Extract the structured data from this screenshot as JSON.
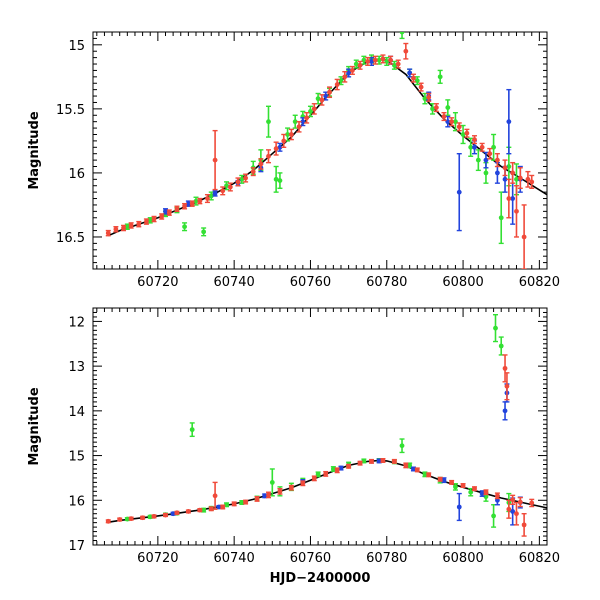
{
  "chart_data": [
    {
      "type": "scatter",
      "title": "",
      "xlabel": "",
      "ylabel": "Magnitude",
      "xlim": [
        60703,
        60822
      ],
      "ylim": [
        16.75,
        14.9
      ],
      "y_inverted": true,
      "xticks": [
        60720,
        60740,
        60760,
        60780,
        60800,
        60820
      ],
      "yticks": [
        15,
        15.5,
        16,
        16.5
      ],
      "ytick_labels": [
        "15",
        "15.5",
        "16",
        "16.5"
      ],
      "model_curve": {
        "color": "#000000",
        "x": [
          60707,
          60710,
          60715,
          60720,
          60725,
          60730,
          60735,
          60740,
          60745,
          60750,
          60755,
          60760,
          60765,
          60770,
          60775,
          60778,
          60780,
          60785,
          60790,
          60795,
          60800,
          60805,
          60810,
          60815,
          60822
        ],
        "y": [
          16.49,
          16.45,
          16.4,
          16.35,
          16.29,
          16.23,
          16.16,
          16.08,
          15.98,
          15.85,
          15.72,
          15.55,
          15.38,
          15.22,
          15.13,
          15.11,
          15.12,
          15.23,
          15.42,
          15.58,
          15.71,
          15.83,
          15.95,
          16.04,
          16.17
        ]
      },
      "series": [
        {
          "color": "#33e033",
          "x": [
            60712,
            60718,
            60722,
            60725,
            60727,
            60730,
            60732,
            60734,
            60738,
            60742,
            60745,
            60747,
            60749,
            60751,
            60752,
            60754,
            60756,
            60758,
            60760,
            60762,
            60765,
            60768,
            60770,
            60772,
            60774,
            60776,
            60778,
            60780,
            60782,
            60784,
            60786,
            60788,
            60790,
            60792,
            60794,
            60796,
            60798,
            60800,
            60802,
            60804,
            60806,
            60808,
            60810,
            60812,
            60814
          ],
          "y": [
            16.42,
            16.37,
            16.32,
            16.29,
            16.42,
            16.22,
            16.46,
            16.18,
            16.1,
            16.05,
            15.96,
            15.9,
            15.6,
            16.05,
            16.06,
            15.7,
            15.6,
            15.56,
            15.52,
            15.42,
            15.37,
            15.28,
            15.2,
            15.15,
            15.12,
            15.11,
            15.12,
            15.13,
            15.16,
            14.9,
            15.22,
            15.28,
            15.42,
            15.5,
            15.25,
            15.49,
            15.6,
            15.7,
            15.8,
            15.9,
            16.0,
            15.8,
            16.35,
            15.95,
            16.05
          ],
          "err": [
            0.02,
            0.02,
            0.02,
            0.02,
            0.03,
            0.03,
            0.03,
            0.03,
            0.03,
            0.03,
            0.05,
            0.08,
            0.12,
            0.1,
            0.06,
            0.05,
            0.05,
            0.04,
            0.04,
            0.04,
            0.03,
            0.03,
            0.03,
            0.03,
            0.03,
            0.03,
            0.03,
            0.03,
            0.03,
            0.05,
            0.03,
            0.03,
            0.04,
            0.04,
            0.05,
            0.06,
            0.07,
            0.07,
            0.07,
            0.08,
            0.08,
            0.1,
            0.2,
            0.15,
            0.12
          ]
        },
        {
          "color": "#2244dd",
          "x": [
            60722,
            60728,
            60735,
            60741,
            60747,
            60752,
            60758,
            60764,
            60770,
            60776,
            60781,
            60786,
            60791,
            60796,
            60799,
            60803,
            60806,
            60809,
            60811,
            60812,
            60813,
            60815
          ],
          "y": [
            16.3,
            16.24,
            16.16,
            16.08,
            15.96,
            15.8,
            15.6,
            15.4,
            15.22,
            15.13,
            15.12,
            15.22,
            15.4,
            15.6,
            16.15,
            15.8,
            15.9,
            16.0,
            16.05,
            15.6,
            16.2,
            16.05
          ],
          "err": [
            0.02,
            0.02,
            0.02,
            0.02,
            0.03,
            0.03,
            0.03,
            0.03,
            0.03,
            0.03,
            0.03,
            0.03,
            0.03,
            0.04,
            0.3,
            0.05,
            0.06,
            0.08,
            0.1,
            0.25,
            0.2,
            0.1
          ]
        },
        {
          "color": "#f04a3a",
          "x": [
            60707,
            60709,
            60711,
            60713,
            60715,
            60717,
            60719,
            60721,
            60723,
            60725,
            60727,
            60729,
            60731,
            60733,
            60735,
            60737,
            60739,
            60741,
            60743,
            60745,
            60747,
            60749,
            60751,
            60753,
            60755,
            60757,
            60759,
            60761,
            60763,
            60765,
            60767,
            60769,
            60771,
            60773,
            60775,
            60777,
            60779,
            60781,
            60783,
            60785,
            60787,
            60789,
            60791,
            60793,
            60795,
            60797,
            60799,
            60801,
            60803,
            60805,
            60807,
            60809,
            60811,
            60812,
            60813,
            60814,
            60815,
            60816,
            60817,
            60818
          ],
          "y": [
            16.47,
            16.44,
            16.43,
            16.41,
            16.4,
            16.38,
            16.36,
            16.34,
            16.31,
            16.28,
            16.26,
            16.24,
            16.22,
            16.2,
            15.9,
            16.14,
            16.11,
            16.07,
            16.04,
            15.99,
            15.93,
            15.87,
            15.81,
            15.75,
            15.7,
            15.64,
            15.57,
            15.5,
            15.43,
            15.37,
            15.31,
            15.25,
            15.2,
            15.16,
            15.13,
            15.12,
            15.11,
            15.12,
            15.15,
            15.05,
            15.26,
            15.33,
            15.41,
            15.49,
            15.56,
            15.6,
            15.64,
            15.69,
            15.74,
            15.8,
            15.85,
            15.9,
            15.96,
            16.2,
            16.0,
            16.3,
            16.04,
            16.5,
            16.05,
            16.07
          ],
          "err": [
            0.02,
            0.02,
            0.02,
            0.02,
            0.02,
            0.02,
            0.02,
            0.02,
            0.02,
            0.02,
            0.02,
            0.02,
            0.02,
            0.03,
            0.23,
            0.03,
            0.03,
            0.03,
            0.03,
            0.03,
            0.04,
            0.05,
            0.05,
            0.05,
            0.04,
            0.04,
            0.04,
            0.04,
            0.04,
            0.04,
            0.04,
            0.04,
            0.03,
            0.03,
            0.03,
            0.03,
            0.03,
            0.03,
            0.03,
            0.06,
            0.03,
            0.03,
            0.03,
            0.03,
            0.03,
            0.03,
            0.03,
            0.03,
            0.03,
            0.03,
            0.04,
            0.05,
            0.06,
            0.15,
            0.08,
            0.2,
            0.08,
            0.25,
            0.06,
            0.05
          ]
        }
      ]
    },
    {
      "type": "scatter",
      "title": "",
      "xlabel": "HJD−2400000",
      "ylabel": "Magnitude",
      "xlim": [
        60703,
        60822
      ],
      "ylim": [
        17.0,
        11.7
      ],
      "y_inverted": true,
      "xticks": [
        60720,
        60740,
        60760,
        60780,
        60800,
        60820
      ],
      "yticks": [
        12,
        13,
        14,
        15,
        16,
        17
      ],
      "ytick_labels": [
        "12",
        "13",
        "14",
        "15",
        "16",
        "17"
      ],
      "model_curve": {
        "color": "#000000",
        "x": [
          60707,
          60710,
          60715,
          60720,
          60725,
          60730,
          60735,
          60740,
          60745,
          60750,
          60755,
          60760,
          60765,
          60770,
          60775,
          60778,
          60780,
          60785,
          60790,
          60795,
          60800,
          60805,
          60810,
          60815,
          60822
        ],
        "y": [
          16.49,
          16.45,
          16.4,
          16.35,
          16.29,
          16.23,
          16.16,
          16.08,
          15.98,
          15.85,
          15.72,
          15.55,
          15.38,
          15.22,
          15.13,
          15.11,
          15.12,
          15.23,
          15.42,
          15.58,
          15.71,
          15.83,
          15.95,
          16.04,
          16.17
        ]
      },
      "series": [
        {
          "color": "#33e033",
          "x": [
            60712,
            60718,
            60722,
            60725,
            60729,
            60732,
            60734,
            60738,
            60742,
            60746,
            60750,
            60752,
            60755,
            60758,
            60762,
            60766,
            60770,
            60774,
            60778,
            60782,
            60784,
            60786,
            60790,
            60794,
            60798,
            60802,
            60806,
            60808,
            60808.5,
            60810,
            60812
          ],
          "y": [
            16.42,
            16.37,
            16.32,
            16.29,
            14.42,
            16.22,
            16.18,
            16.1,
            16.05,
            15.96,
            15.6,
            15.8,
            15.7,
            15.56,
            15.42,
            15.3,
            15.2,
            15.12,
            15.11,
            15.14,
            14.78,
            15.22,
            15.42,
            15.55,
            15.7,
            15.82,
            15.92,
            16.35,
            12.15,
            12.55,
            16.05
          ],
          "err": [
            0.03,
            0.03,
            0.03,
            0.03,
            0.15,
            0.04,
            0.04,
            0.04,
            0.04,
            0.05,
            0.3,
            0.1,
            0.08,
            0.05,
            0.05,
            0.05,
            0.05,
            0.04,
            0.04,
            0.04,
            0.15,
            0.05,
            0.05,
            0.06,
            0.07,
            0.08,
            0.1,
            0.25,
            0.3,
            0.2,
            0.2
          ]
        },
        {
          "color": "#2244dd",
          "x": [
            60724,
            60736,
            60748,
            60758,
            60768,
            60778,
            60787,
            60795,
            60799,
            60805,
            60809,
            60811,
            60811.5,
            60813,
            60815
          ],
          "y": [
            16.3,
            16.15,
            15.9,
            15.58,
            15.28,
            15.12,
            15.3,
            15.55,
            16.15,
            15.85,
            16.0,
            14.0,
            13.6,
            16.25,
            16.05
          ],
          "err": [
            0.03,
            0.03,
            0.04,
            0.04,
            0.04,
            0.04,
            0.04,
            0.05,
            0.3,
            0.06,
            0.1,
            0.2,
            0.2,
            0.3,
            0.12
          ]
        },
        {
          "color": "#f04a3a",
          "x": [
            60707,
            60710,
            60713,
            60716,
            60719,
            60722,
            60725,
            60728,
            60731,
            60734,
            60735,
            60737,
            60740,
            60743,
            60746,
            60749,
            60752,
            60755,
            60758,
            60761,
            60764,
            60767,
            60770,
            60773,
            60776,
            60779,
            60782,
            60785,
            60788,
            60791,
            60794,
            60797,
            60800,
            60803,
            60806,
            60809,
            60811,
            60811.5,
            60812,
            60813,
            60814,
            60815,
            60816,
            60818
          ],
          "y": [
            16.47,
            16.43,
            16.41,
            16.39,
            16.36,
            16.33,
            16.28,
            16.25,
            16.22,
            16.19,
            15.9,
            16.15,
            16.08,
            16.04,
            15.97,
            15.88,
            15.8,
            15.72,
            15.62,
            15.51,
            15.41,
            15.33,
            15.24,
            15.17,
            15.13,
            15.11,
            15.13,
            15.22,
            15.32,
            15.43,
            15.53,
            15.6,
            15.67,
            15.74,
            15.82,
            15.9,
            13.05,
            13.45,
            16.2,
            15.99,
            16.3,
            16.04,
            16.55,
            16.06
          ],
          "err": [
            0.03,
            0.03,
            0.03,
            0.03,
            0.03,
            0.03,
            0.03,
            0.03,
            0.03,
            0.04,
            0.3,
            0.04,
            0.04,
            0.04,
            0.05,
            0.06,
            0.06,
            0.05,
            0.05,
            0.05,
            0.05,
            0.05,
            0.04,
            0.04,
            0.04,
            0.04,
            0.04,
            0.05,
            0.04,
            0.04,
            0.04,
            0.04,
            0.04,
            0.04,
            0.05,
            0.06,
            0.3,
            0.3,
            0.2,
            0.1,
            0.25,
            0.1,
            0.25,
            0.08
          ]
        }
      ]
    }
  ]
}
